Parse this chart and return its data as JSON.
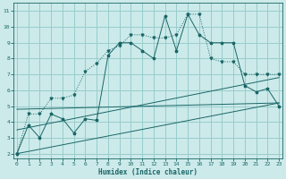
{
  "xlabel": "Humidex (Indice chaleur)",
  "x_ticks": [
    0,
    1,
    2,
    3,
    4,
    5,
    6,
    7,
    8,
    9,
    10,
    11,
    12,
    13,
    14,
    15,
    16,
    17,
    18,
    19,
    20,
    21,
    22,
    23
  ],
  "y_ticks": [
    2,
    3,
    4,
    5,
    6,
    7,
    8,
    9,
    10,
    11
  ],
  "xlim": [
    -0.3,
    23.3
  ],
  "ylim": [
    1.7,
    11.5
  ],
  "bg_color": "#cceaea",
  "grid_color": "#99cccc",
  "line_color": "#1a6666",
  "series1_x": [
    0,
    1,
    2,
    3,
    4,
    5,
    6,
    7,
    8,
    9,
    10,
    11,
    12,
    13,
    14,
    15,
    16,
    17,
    18,
    19,
    20,
    21,
    22,
    23
  ],
  "series1_y": [
    2.0,
    3.8,
    3.0,
    4.5,
    4.2,
    3.3,
    4.2,
    4.1,
    8.2,
    9.0,
    9.0,
    8.5,
    8.0,
    10.7,
    8.5,
    10.8,
    9.5,
    9.0,
    9.0,
    9.0,
    6.3,
    5.9,
    6.1,
    5.0
  ],
  "series2_x": [
    0,
    1,
    2,
    3,
    4,
    5,
    6,
    7,
    8,
    9,
    10,
    11,
    12,
    13,
    14,
    15,
    16,
    17,
    18,
    19,
    20,
    21,
    22,
    23
  ],
  "series2_y": [
    2.0,
    4.5,
    4.5,
    5.5,
    5.5,
    5.7,
    7.2,
    7.7,
    8.5,
    8.8,
    9.5,
    9.5,
    9.3,
    9.3,
    9.5,
    10.8,
    10.8,
    8.0,
    7.8,
    7.8,
    7.0,
    7.0,
    7.0,
    7.0
  ],
  "line1_x": [
    0,
    23
  ],
  "line1_y": [
    2.0,
    5.2
  ],
  "line2_x": [
    0,
    23
  ],
  "line2_y": [
    3.5,
    6.8
  ],
  "line3_x": [
    0,
    23
  ],
  "line3_y": [
    4.8,
    5.2
  ]
}
